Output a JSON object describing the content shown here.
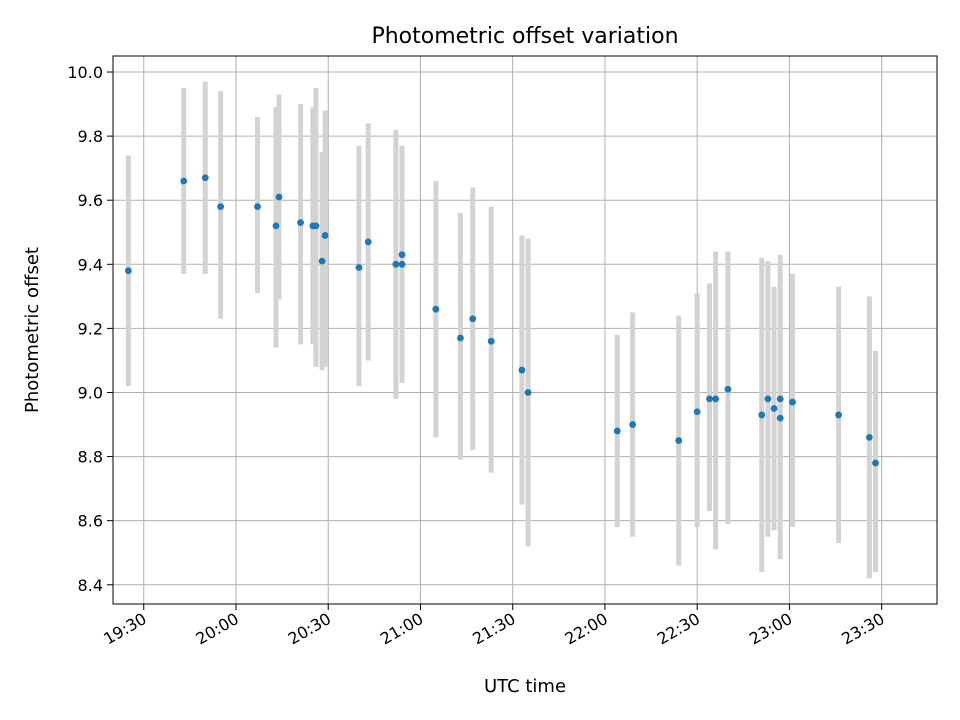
{
  "chart_data": {
    "type": "scatter",
    "title": "Photometric offset variation",
    "xlabel": "UTC time",
    "ylabel": "Photometric offset",
    "grid": true,
    "legend": "none",
    "xlim": [
      "19:20",
      "23:48"
    ],
    "ylim": [
      8.34,
      10.05
    ],
    "xticks": [
      "19:30",
      "20:00",
      "20:30",
      "21:00",
      "21:30",
      "22:00",
      "22:30",
      "23:00",
      "23:30"
    ],
    "yticks": [
      8.4,
      8.6,
      8.8,
      9.0,
      9.2,
      9.4,
      9.6,
      9.8,
      10.0
    ],
    "ytick_labels": [
      "8.4",
      "8.6",
      "8.8",
      "9.0",
      "9.2",
      "9.4",
      "9.6",
      "9.8",
      "10.0"
    ],
    "colors": {
      "point": "#1f77b4",
      "errorbar": "#d3d3d3",
      "grid": "#b0b0b0"
    },
    "series": [
      {
        "points": [
          {
            "x": "19:25",
            "y": 9.38,
            "ylow": 9.02,
            "yhigh": 9.74
          },
          {
            "x": "19:43",
            "y": 9.66,
            "ylow": 9.37,
            "yhigh": 9.95
          },
          {
            "x": "19:50",
            "y": 9.67,
            "ylow": 9.37,
            "yhigh": 9.97
          },
          {
            "x": "19:55",
            "y": 9.58,
            "ylow": 9.23,
            "yhigh": 9.94
          },
          {
            "x": "20:07",
            "y": 9.58,
            "ylow": 9.31,
            "yhigh": 9.86
          },
          {
            "x": "20:13",
            "y": 9.52,
            "ylow": 9.14,
            "yhigh": 9.89
          },
          {
            "x": "20:14",
            "y": 9.61,
            "ylow": 9.29,
            "yhigh": 9.93
          },
          {
            "x": "20:21",
            "y": 9.53,
            "ylow": 9.15,
            "yhigh": 9.9
          },
          {
            "x": "20:25",
            "y": 9.52,
            "ylow": 9.15,
            "yhigh": 9.89
          },
          {
            "x": "20:26",
            "y": 9.52,
            "ylow": 9.08,
            "yhigh": 9.95
          },
          {
            "x": "20:28",
            "y": 9.41,
            "ylow": 9.07,
            "yhigh": 9.75
          },
          {
            "x": "20:29",
            "y": 9.49,
            "ylow": 9.08,
            "yhigh": 9.88
          },
          {
            "x": "20:40",
            "y": 9.39,
            "ylow": 9.02,
            "yhigh": 9.77
          },
          {
            "x": "20:43",
            "y": 9.47,
            "ylow": 9.1,
            "yhigh": 9.84
          },
          {
            "x": "20:52",
            "y": 9.4,
            "ylow": 8.98,
            "yhigh": 9.82
          },
          {
            "x": "20:54",
            "y": 9.4,
            "ylow": 9.03,
            "yhigh": 9.77
          },
          {
            "x": "20:54",
            "y": 9.43,
            "ylow": 9.09,
            "yhigh": 9.77
          },
          {
            "x": "21:05",
            "y": 9.26,
            "ylow": 8.86,
            "yhigh": 9.66
          },
          {
            "x": "21:13",
            "y": 9.17,
            "ylow": 8.79,
            "yhigh": 9.56
          },
          {
            "x": "21:17",
            "y": 9.23,
            "ylow": 8.82,
            "yhigh": 9.64
          },
          {
            "x": "21:23",
            "y": 9.16,
            "ylow": 8.75,
            "yhigh": 9.58
          },
          {
            "x": "21:33",
            "y": 9.07,
            "ylow": 8.65,
            "yhigh": 9.49
          },
          {
            "x": "21:35",
            "y": 9.0,
            "ylow": 8.52,
            "yhigh": 9.48
          },
          {
            "x": "22:04",
            "y": 8.88,
            "ylow": 8.58,
            "yhigh": 9.18
          },
          {
            "x": "22:09",
            "y": 8.9,
            "ylow": 8.55,
            "yhigh": 9.25
          },
          {
            "x": "22:24",
            "y": 8.85,
            "ylow": 8.46,
            "yhigh": 9.24
          },
          {
            "x": "22:30",
            "y": 8.94,
            "ylow": 8.58,
            "yhigh": 9.31
          },
          {
            "x": "22:34",
            "y": 8.98,
            "ylow": 8.63,
            "yhigh": 9.34
          },
          {
            "x": "22:36",
            "y": 8.98,
            "ylow": 8.51,
            "yhigh": 9.44
          },
          {
            "x": "22:40",
            "y": 9.01,
            "ylow": 8.59,
            "yhigh": 9.44
          },
          {
            "x": "22:51",
            "y": 8.93,
            "ylow": 8.44,
            "yhigh": 9.42
          },
          {
            "x": "22:53",
            "y": 8.98,
            "ylow": 8.55,
            "yhigh": 9.41
          },
          {
            "x": "22:55",
            "y": 8.95,
            "ylow": 8.57,
            "yhigh": 9.33
          },
          {
            "x": "22:57",
            "y": 8.92,
            "ylow": 8.48,
            "yhigh": 9.43
          },
          {
            "x": "22:57",
            "y": 8.98,
            "ylow": 8.61,
            "yhigh": 9.35
          },
          {
            "x": "23:01",
            "y": 8.97,
            "ylow": 8.58,
            "yhigh": 9.37
          },
          {
            "x": "23:16",
            "y": 8.93,
            "ylow": 8.53,
            "yhigh": 9.33
          },
          {
            "x": "23:26",
            "y": 8.86,
            "ylow": 8.42,
            "yhigh": 9.3
          },
          {
            "x": "23:28",
            "y": 8.78,
            "ylow": 8.44,
            "yhigh": 9.13
          }
        ]
      }
    ]
  }
}
